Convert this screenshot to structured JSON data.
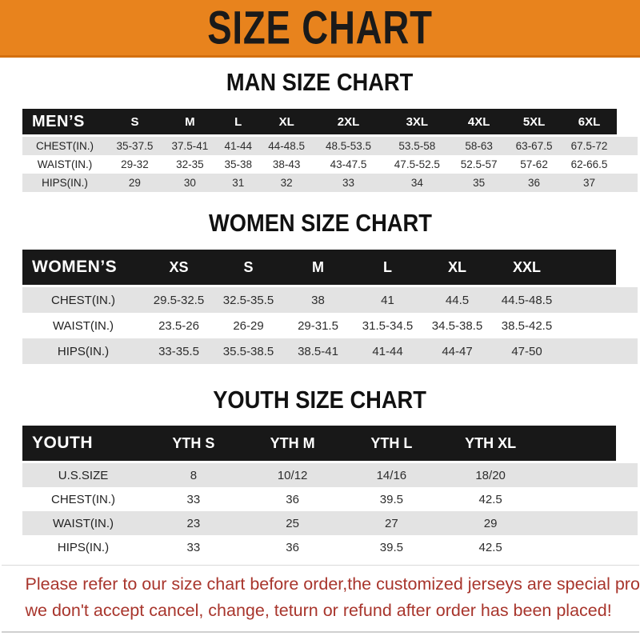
{
  "banner": {
    "title": "SIZE CHART"
  },
  "chart_data": [
    {
      "type": "table",
      "title": "MAN SIZE CHART",
      "corner_label": "MEN’S",
      "columns": [
        "S",
        "M",
        "L",
        "XL",
        "2XL",
        "3XL",
        "4XL",
        "5XL",
        "6XL"
      ],
      "rows": [
        {
          "label": "CHEST(IN.)",
          "values": [
            "35-37.5",
            "37.5-41",
            "41-44",
            "44-48.5",
            "48.5-53.5",
            "53.5-58",
            "58-63",
            "63-67.5",
            "67.5-72"
          ]
        },
        {
          "label": "WAIST(IN.)",
          "values": [
            "29-32",
            "32-35",
            "35-38",
            "38-43",
            "43-47.5",
            "47.5-52.5",
            "52.5-57",
            "57-62",
            "62-66.5"
          ]
        },
        {
          "label": "HIPS(IN.)",
          "values": [
            "29",
            "30",
            "31",
            "32",
            "33",
            "34",
            "35",
            "36",
            "37"
          ]
        }
      ]
    },
    {
      "type": "table",
      "title": "WOMEN SIZE CHART",
      "corner_label": "WOMEN’S",
      "columns": [
        "XS",
        "S",
        "M",
        "L",
        "XL",
        "XXL"
      ],
      "rows": [
        {
          "label": "CHEST(IN.)",
          "values": [
            "29.5-32.5",
            "32.5-35.5",
            "38",
            "41",
            "44.5",
            "44.5-48.5"
          ]
        },
        {
          "label": "WAIST(IN.)",
          "values": [
            "23.5-26",
            "26-29",
            "29-31.5",
            "31.5-34.5",
            "34.5-38.5",
            "38.5-42.5"
          ]
        },
        {
          "label": "HIPS(IN.)",
          "values": [
            "33-35.5",
            "35.5-38.5",
            "38.5-41",
            "41-44",
            "44-47",
            "47-50"
          ]
        }
      ]
    },
    {
      "type": "table",
      "title": "YOUTH SIZE CHART",
      "corner_label": "YOUTH",
      "columns": [
        "YTH S",
        "YTH M",
        "YTH L",
        "YTH XL"
      ],
      "rows": [
        {
          "label": "U.S.SIZE",
          "values": [
            "8",
            "10/12",
            "14/16",
            "18/20"
          ]
        },
        {
          "label": "CHEST(IN.)",
          "values": [
            "33",
            "36",
            "39.5",
            "42.5"
          ]
        },
        {
          "label": "WAIST(IN.)",
          "values": [
            "23",
            "25",
            "27",
            "29"
          ]
        },
        {
          "label": "HIPS(IN.)",
          "values": [
            "33",
            "36",
            "39.5",
            "42.5"
          ]
        }
      ]
    }
  ],
  "footer": {
    "line1": "Please refer to our size chart before order,the customized jerseys are special products,",
    "line2": "we don't accept cancel, change, teturn or refund after order has been placed!"
  },
  "colors": {
    "banner_orange": "#E8831D",
    "header_black": "#181818",
    "row_gray": "#E3E3E3",
    "footer_red": "#A8352C"
  }
}
